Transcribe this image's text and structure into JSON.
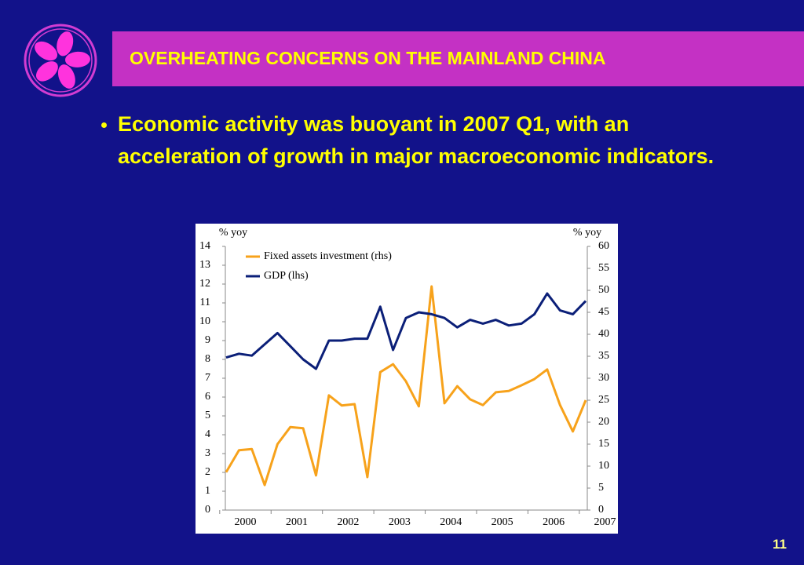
{
  "header": {
    "title": "OVERHEATING CONCERNS ON THE MAINLAND CHINA"
  },
  "bullets": [
    "Economic activity was buoyant in 2007 Q1, with an acceleration of growth in major macroeconomic indicators."
  ],
  "page_number": "11",
  "chart_data": {
    "type": "line",
    "y_label": "% yoy",
    "y2_label": "% yoy",
    "categories": [
      "2000",
      null,
      null,
      null,
      "2001",
      null,
      null,
      null,
      "2002",
      null,
      null,
      null,
      "2003",
      null,
      null,
      null,
      "2004",
      null,
      null,
      null,
      "2005",
      null,
      null,
      null,
      "2006",
      null,
      null,
      null,
      "2007"
    ],
    "series": [
      {
        "name": "Fixed assets investment (rhs)",
        "color": "#f7a21b",
        "axis": "y2",
        "values": [
          8.6,
          13.6,
          13.9,
          5.7,
          15.0,
          18.9,
          18.6,
          7.9,
          26.1,
          23.8,
          24.1,
          7.5,
          31.4,
          33.2,
          29.3,
          23.6,
          50.9,
          24.3,
          28.2,
          25.2,
          23.9,
          26.8,
          27.1,
          28.4,
          29.8,
          32.0,
          23.9,
          17.9,
          25.0
        ]
      },
      {
        "name": "GDP (lhs)",
        "color": "#0b1f78",
        "values": [
          8.1,
          8.3,
          8.2,
          8.8,
          9.4,
          8.7,
          8.0,
          7.5,
          9.0,
          9.0,
          9.1,
          9.1,
          10.8,
          8.5,
          10.2,
          10.5,
          10.4,
          10.2,
          9.7,
          10.1,
          9.9,
          10.1,
          9.8,
          9.9,
          10.4,
          11.5,
          10.6,
          10.4,
          11.1
        ]
      }
    ],
    "ylim": [
      0,
      14
    ],
    "yticks": [
      0,
      1,
      2,
      3,
      4,
      5,
      6,
      7,
      8,
      9,
      10,
      11,
      12,
      13,
      14
    ],
    "y2lim": [
      0,
      60
    ],
    "y2ticks": [
      0,
      5,
      10,
      15,
      20,
      25,
      30,
      35,
      40,
      45,
      50,
      55,
      60
    ],
    "legend": "top-left"
  }
}
